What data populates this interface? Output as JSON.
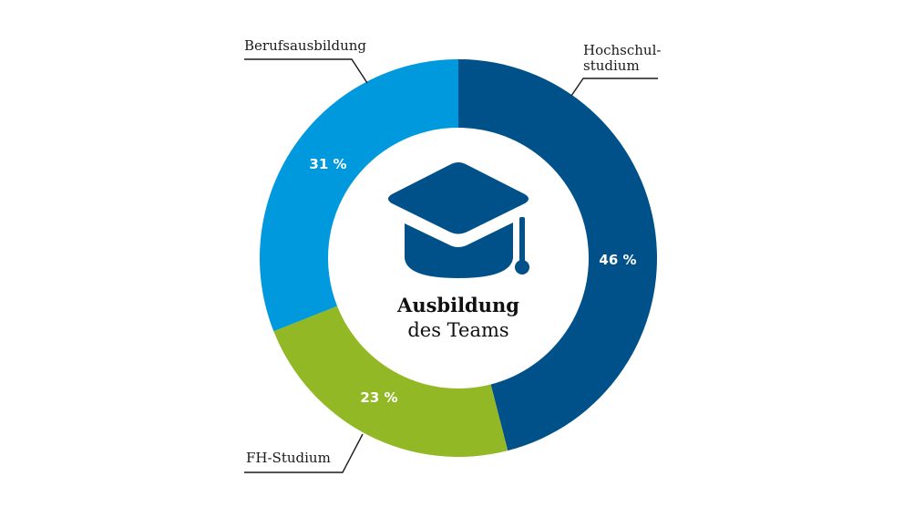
{
  "chart_data": {
    "type": "pie",
    "variant": "donut",
    "title": "Ausbildung des Teams",
    "title_bold": "Ausbildung",
    "title_regular": "des Teams",
    "start_angle": "12 o'clock, clockwise",
    "slices": [
      {
        "label": "Hochschulstudium",
        "display_label": "Hochschul-\nstudium",
        "value": 46,
        "value_label": "46 %",
        "color": "#00518a"
      },
      {
        "label": "FH-Studium",
        "display_label": "FH-Studium",
        "value": 23,
        "value_label": "23 %",
        "color": "#93b826"
      },
      {
        "label": "Berufsausbildung",
        "display_label": "Berufsausbildung",
        "value": 31,
        "value_label": "31 %",
        "color": "#0099dd"
      }
    ],
    "center_icon": "graduation-cap-icon",
    "icon_color": "#00518a"
  },
  "labels": {
    "hochschul_line1": "Hochschul-",
    "hochschul_line2": "studium",
    "fh": "FH-Studium",
    "beruf": "Berufsausbildung"
  },
  "values": {
    "hochschul": "46 %",
    "fh": "23 %",
    "beruf": "31 %"
  },
  "center": {
    "bold": "Ausbildung",
    "regular": "des Teams"
  }
}
